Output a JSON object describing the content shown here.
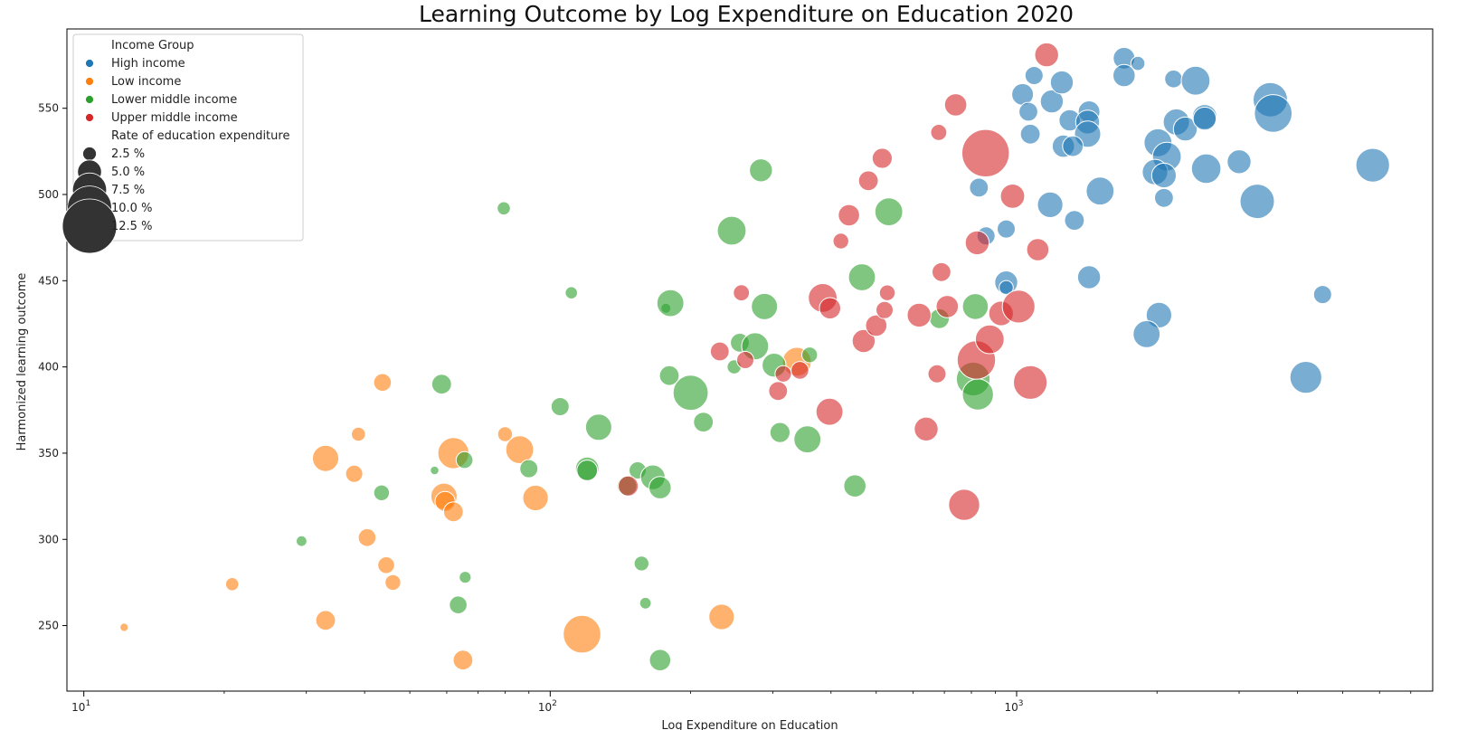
{
  "chart_data": {
    "type": "scatter",
    "title": "Learning Outcome by Log Expenditure on Education 2020",
    "xlabel": "Log Expenditure on Education",
    "ylabel": "Harmonized learning outcome",
    "x_scale": "log",
    "xlim": [
      9.2,
      7800
    ],
    "ylim": [
      212,
      596
    ],
    "x_ticks": [
      {
        "value": 10,
        "base": "10",
        "exp": "1"
      },
      {
        "value": 100,
        "base": "10",
        "exp": "2"
      },
      {
        "value": 1000,
        "base": "10",
        "exp": "3"
      }
    ],
    "y_ticks": [
      250,
      300,
      350,
      400,
      450,
      500,
      550
    ],
    "grid": false,
    "legend": {
      "placement": "top-left",
      "hue_title": "Income Group",
      "size_title": "Rate of education expenditure",
      "size_entries": [
        {
          "label": "2.5 %",
          "rate": 2.5
        },
        {
          "label": "5.0 %",
          "rate": 5.0
        },
        {
          "label": "7.5 %",
          "rate": 7.5
        },
        {
          "label": "10.0 %",
          "rate": 10.0
        },
        {
          "label": "12.5 %",
          "rate": 12.5
        }
      ]
    },
    "series": [
      {
        "name": "High income",
        "color": "#1f77b4",
        "points": [
          [
            1030,
            558,
            4.5
          ],
          [
            1090,
            569,
            3.6
          ],
          [
            1060,
            548,
            3.8
          ],
          [
            1190,
            554,
            4.8
          ],
          [
            1250,
            565,
            4.8
          ],
          [
            1300,
            543,
            4.4
          ],
          [
            1430,
            548,
            4.5
          ],
          [
            1420,
            542,
            5.0
          ],
          [
            1420,
            535,
            5.6
          ],
          [
            1070,
            535,
            4.0
          ],
          [
            1260,
            528,
            4.6
          ],
          [
            1320,
            528,
            4.2
          ],
          [
            1700,
            579,
            4.5
          ],
          [
            1820,
            576,
            2.6
          ],
          [
            1700,
            569,
            4.6
          ],
          [
            2170,
            567,
            3.5
          ],
          [
            2420,
            566,
            6.2
          ],
          [
            2200,
            542,
            5.6
          ],
          [
            2300,
            538,
            5.0
          ],
          [
            2530,
            545,
            5.2
          ],
          [
            2530,
            544,
            4.8
          ],
          [
            3500,
            555,
            7.6
          ],
          [
            3550,
            547,
            8.4
          ],
          [
            2010,
            530,
            6.0
          ],
          [
            2100,
            522,
            6.2
          ],
          [
            1980,
            513,
            5.4
          ],
          [
            2070,
            511,
            5.2
          ],
          [
            2550,
            515,
            6.4
          ],
          [
            3000,
            519,
            5.0
          ],
          [
            5800,
            517,
            7.4
          ],
          [
            830,
            504,
            3.8
          ],
          [
            1510,
            502,
            6.0
          ],
          [
            2070,
            498,
            3.8
          ],
          [
            3280,
            496,
            7.6
          ],
          [
            1180,
            494,
            5.4
          ],
          [
            1330,
            485,
            4.0
          ],
          [
            860,
            476,
            3.6
          ],
          [
            950,
            480,
            3.6
          ],
          [
            950,
            449,
            4.8
          ],
          [
            950,
            446,
            2.6
          ],
          [
            1430,
            452,
            4.8
          ],
          [
            4530,
            442,
            3.6
          ],
          [
            2020,
            430,
            5.4
          ],
          [
            1900,
            419,
            5.8
          ],
          [
            4170,
            394,
            7.0
          ]
        ]
      },
      {
        "name": "Low income",
        "color": "#ff7f0e",
        "points": [
          [
            12.2,
            249,
            1.2
          ],
          [
            20.8,
            274,
            2.4
          ],
          [
            33,
            347,
            5.6
          ],
          [
            38,
            338,
            3.4
          ],
          [
            38.8,
            361,
            2.6
          ],
          [
            43.7,
            391,
            3.5
          ],
          [
            33,
            253,
            4.0
          ],
          [
            40.5,
            301,
            3.5
          ],
          [
            44.5,
            285,
            3.3
          ],
          [
            46,
            275,
            3.0
          ],
          [
            59.2,
            325,
            5.6
          ],
          [
            59.5,
            322,
            4.1
          ],
          [
            62,
            316,
            4.0
          ],
          [
            62,
            350,
            6.8
          ],
          [
            65,
            230,
            4.0
          ],
          [
            80,
            361,
            2.8
          ],
          [
            86,
            352,
            6.0
          ],
          [
            93,
            324,
            5.4
          ],
          [
            117,
            245,
            8.4
          ],
          [
            233,
            255,
            5.4
          ],
          [
            338,
            403,
            6.2
          ]
        ]
      },
      {
        "name": "Lower middle income",
        "color": "#2ca02c",
        "points": [
          [
            29.3,
            299,
            1.8
          ],
          [
            43.5,
            327,
            3.0
          ],
          [
            56.5,
            340,
            1.3
          ],
          [
            58.5,
            390,
            4.0
          ],
          [
            65.5,
            346,
            3.3
          ],
          [
            65.7,
            278,
            2.1
          ],
          [
            63.5,
            262,
            3.5
          ],
          [
            79.5,
            492,
            2.4
          ],
          [
            90,
            341,
            3.6
          ],
          [
            105,
            377,
            3.6
          ],
          [
            111,
            443,
            2.2
          ],
          [
            120,
            341,
            4.9
          ],
          [
            127,
            365,
            5.6
          ],
          [
            120,
            340,
            4.2
          ],
          [
            146,
            331,
            4.0
          ],
          [
            154,
            340,
            3.4
          ],
          [
            157,
            286,
            2.8
          ],
          [
            160,
            263,
            2.0
          ],
          [
            166,
            336,
            5.2
          ],
          [
            172,
            330,
            4.6
          ],
          [
            177,
            434,
            1.6
          ],
          [
            172,
            230,
            4.4
          ],
          [
            181,
            437,
            5.8
          ],
          [
            180,
            395,
            4.0
          ],
          [
            200,
            385,
            7.8
          ],
          [
            213,
            368,
            4.0
          ],
          [
            245,
            479,
            6.2
          ],
          [
            248,
            400,
            2.6
          ],
          [
            255,
            414,
            3.8
          ],
          [
            275,
            412,
            5.8
          ],
          [
            283,
            514,
            4.8
          ],
          [
            288,
            435,
            5.6
          ],
          [
            302,
            401,
            5.0
          ],
          [
            311,
            362,
            4.1
          ],
          [
            356,
            358,
            5.8
          ],
          [
            360,
            407,
            3.0
          ],
          [
            450,
            331,
            4.6
          ],
          [
            466,
            452,
            5.8
          ],
          [
            532,
            490,
            6.0
          ],
          [
            683,
            428,
            4.0
          ],
          [
            807,
            393,
            7.4
          ],
          [
            826,
            384,
            6.8
          ],
          [
            816,
            435,
            5.5
          ]
        ]
      },
      {
        "name": "Upper middle income",
        "color": "#d62728",
        "points": [
          [
            147,
            331,
            4.1
          ],
          [
            231,
            409,
            3.8
          ],
          [
            257,
            443,
            3.1
          ],
          [
            262,
            404,
            3.4
          ],
          [
            308,
            386,
            3.8
          ],
          [
            316,
            396,
            3.2
          ],
          [
            343,
            398,
            3.5
          ],
          [
            384,
            440,
            6.2
          ],
          [
            398,
            434,
            4.4
          ],
          [
            397,
            374,
            5.8
          ],
          [
            420,
            473,
            3.0
          ],
          [
            437,
            488,
            4.4
          ],
          [
            470,
            415,
            4.8
          ],
          [
            481,
            508,
            4.0
          ],
          [
            500,
            424,
            4.4
          ],
          [
            515,
            521,
            4.1
          ],
          [
            521,
            433,
            3.4
          ],
          [
            528,
            443,
            3.0
          ],
          [
            618,
            430,
            5.0
          ],
          [
            640,
            364,
            5.0
          ],
          [
            675,
            396,
            3.6
          ],
          [
            681,
            536,
            3.1
          ],
          [
            690,
            455,
            3.8
          ],
          [
            710,
            435,
            4.6
          ],
          [
            740,
            552,
            4.6
          ],
          [
            772,
            320,
            6.8
          ],
          [
            820,
            404,
            8.6
          ],
          [
            823,
            472,
            5.0
          ],
          [
            858,
            524,
            10.8
          ],
          [
            876,
            416,
            6.2
          ],
          [
            926,
            431,
            5.2
          ],
          [
            980,
            499,
            5.1
          ],
          [
            1010,
            435,
            7.2
          ],
          [
            1070,
            391,
            7.4
          ],
          [
            1110,
            468,
            4.6
          ],
          [
            1160,
            581,
            5.0
          ]
        ]
      }
    ]
  }
}
